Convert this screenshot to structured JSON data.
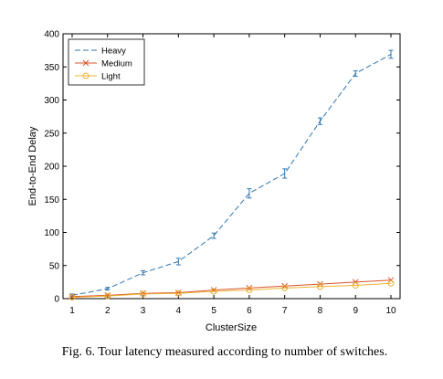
{
  "chart_data": {
    "type": "line",
    "title": "",
    "xlabel": "ClusterSize",
    "ylabel": "End-to-End Delay",
    "xlim": [
      1,
      10
    ],
    "ylim": [
      0,
      400
    ],
    "x": [
      1,
      2,
      3,
      4,
      5,
      6,
      7,
      8,
      9,
      10
    ],
    "xticks": [
      1,
      2,
      3,
      4,
      5,
      6,
      7,
      8,
      9,
      10
    ],
    "yticks": [
      0,
      50,
      100,
      150,
      200,
      250,
      300,
      350,
      400
    ],
    "grid": false,
    "legend_position": "top-left",
    "series": [
      {
        "name": "Heavy",
        "color": "#2f76b1",
        "line_style": "dashed",
        "marker": "none",
        "values": [
          5,
          15,
          39,
          56,
          95,
          159,
          189,
          268,
          340,
          369
        ],
        "errors": [
          2,
          2,
          3,
          5,
          4,
          7,
          7,
          5,
          4,
          6
        ]
      },
      {
        "name": "Medium",
        "color": "#d9552a",
        "line_style": "solid",
        "marker": "x",
        "values": [
          3,
          5,
          8,
          9,
          13,
          16,
          19,
          22,
          25,
          28
        ],
        "errors": []
      },
      {
        "name": "Light",
        "color": "#ecb435",
        "line_style": "solid",
        "marker": "circle",
        "values": [
          2,
          4,
          7,
          8,
          11,
          13,
          16,
          18,
          20,
          23
        ],
        "errors": []
      }
    ]
  },
  "caption": "Fig. 6.  Tour latency measured according to number of switches."
}
